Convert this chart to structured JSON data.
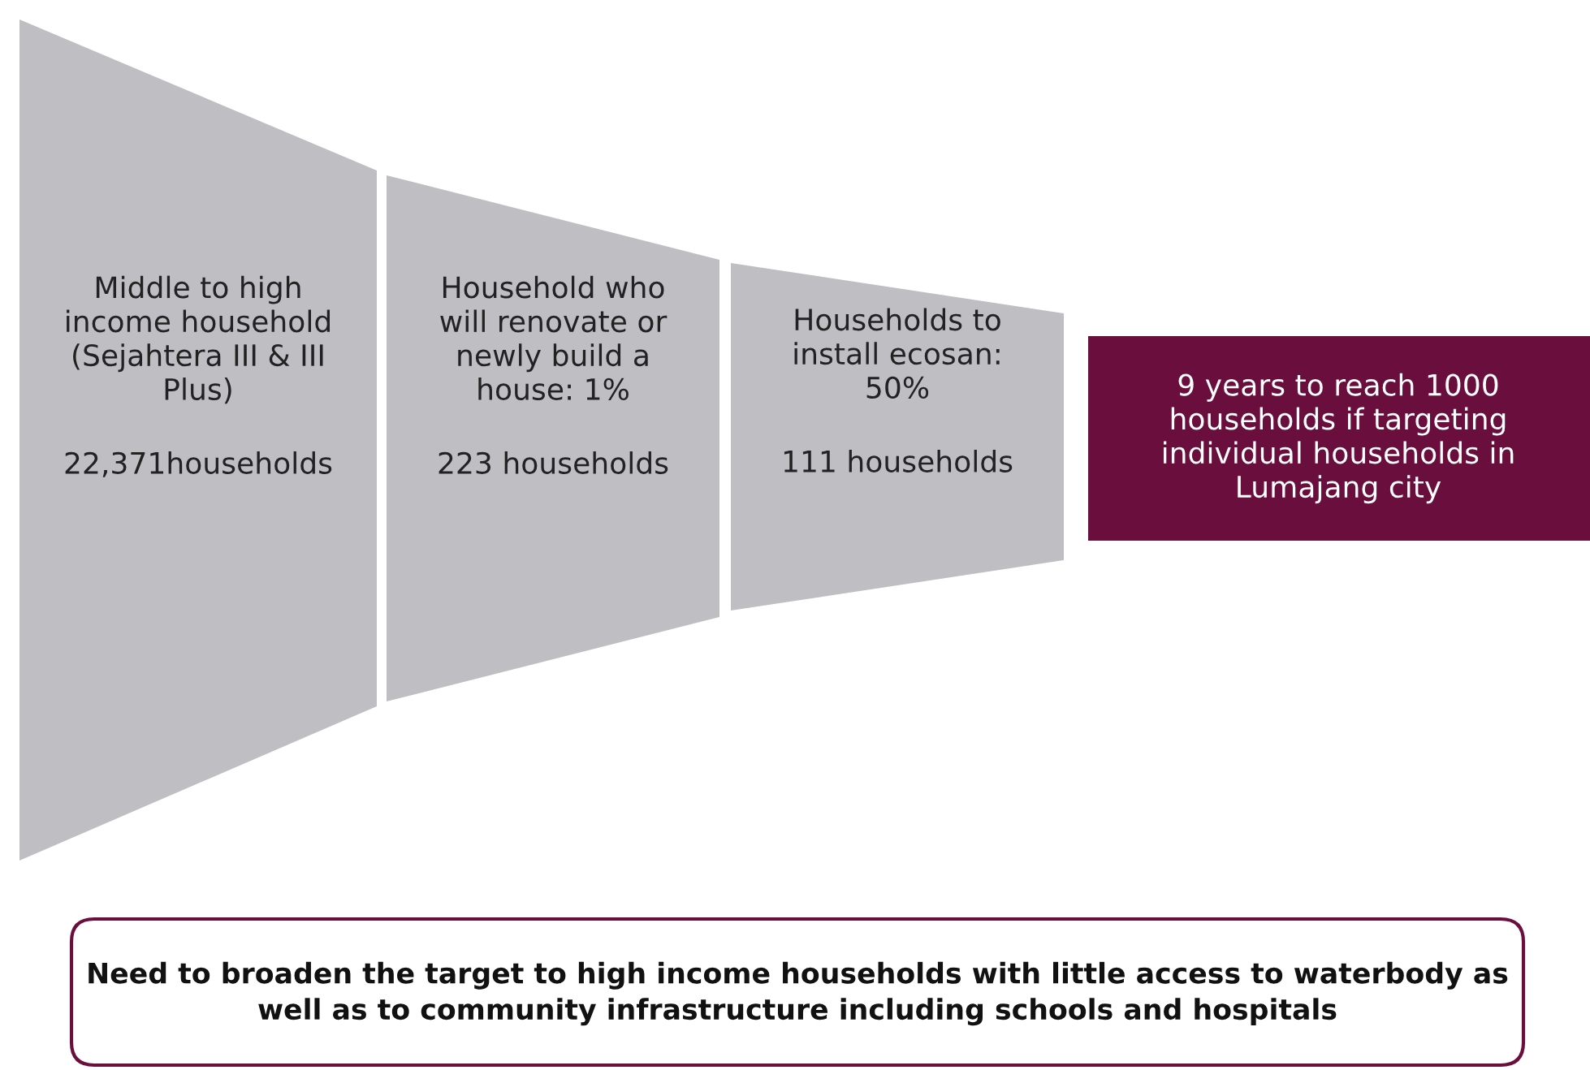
{
  "chart_data": {
    "type": "other",
    "categories": [
      "Middle to high\nincome household\n(Sejahtera III & III\nPlus)",
      "Household who\nwill renovate or\nnewly build a\nhouse: 1%",
      "Households to\ninstall ecosan:\n50%"
    ],
    "values": [
      22371,
      223,
      111
    ],
    "value_labels": [
      "22,371households",
      "223 households",
      "111 households"
    ],
    "colors": [
      "#bfbec2",
      "#bfbec2",
      "#bfbec2"
    ],
    "annotations": [
      "9 years to reach 1000\nhouseholds if targeting\nindividual households in\nLumajang city",
      "Need to broaden the target to high income households with little access to waterbody as\nwell as to community infrastructure including schools and hospitals"
    ]
  }
}
